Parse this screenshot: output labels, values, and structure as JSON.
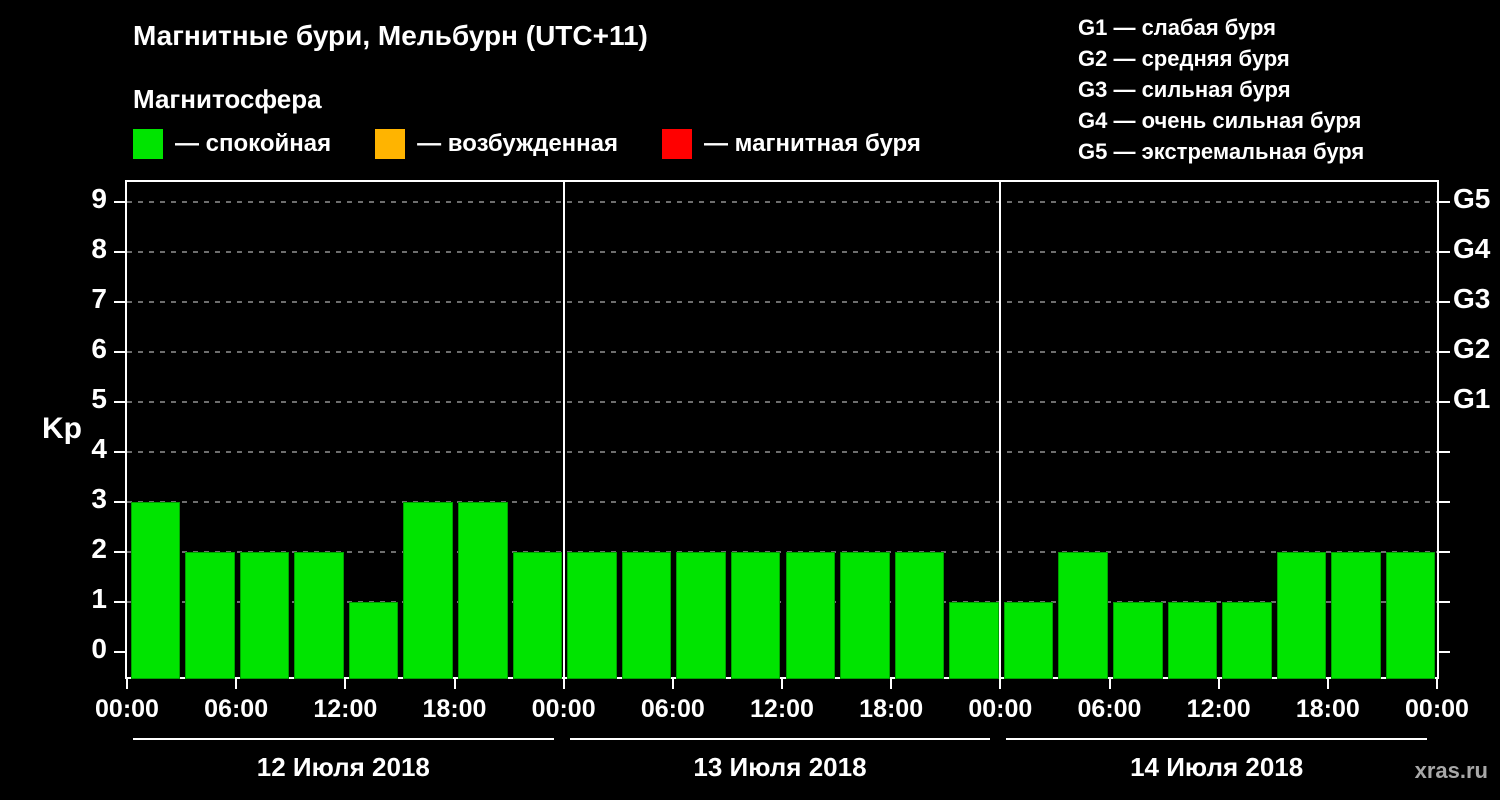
{
  "header": {
    "title": "Магнитные бури, Мельбурн (UTC+11)",
    "subtitle": "Магнитосфера"
  },
  "magnetosphere_legend": [
    {
      "name": "quiet",
      "label": "— спокойная",
      "color": "#00e400"
    },
    {
      "name": "excited",
      "label": "— возбужденная",
      "color": "#ffb400"
    },
    {
      "name": "storm",
      "label": "— магнитная буря",
      "color": "#ff0000"
    }
  ],
  "storm_scale_legend": [
    "G1 — слабая буря",
    "G2 — средняя буря",
    "G3 — сильная буря",
    "G4 — очень сильная буря",
    "G5 — экстремальная буря"
  ],
  "watermark": "xras.ru",
  "chart_data": {
    "type": "bar",
    "title": "Магнитные бури, Мельбурн (UTC+11)",
    "ylabel": "Kp",
    "ylim": [
      0,
      9.4
    ],
    "yticks": [
      0,
      1,
      2,
      3,
      4,
      5,
      6,
      7,
      8,
      9
    ],
    "right_axis_labels": [
      {
        "value": 5,
        "label": "G1"
      },
      {
        "value": 6,
        "label": "G2"
      },
      {
        "value": 7,
        "label": "G3"
      },
      {
        "value": 8,
        "label": "G4"
      },
      {
        "value": 9,
        "label": "G5"
      }
    ],
    "x_tick_labels": [
      "00:00",
      "06:00",
      "12:00",
      "18:00",
      "00:00",
      "06:00",
      "12:00",
      "18:00",
      "00:00",
      "06:00",
      "12:00",
      "18:00",
      "00:00"
    ],
    "bar_interval_hours": 3,
    "bar_color": "#00e400",
    "grid": "dashed horizontal lines at integer Kp values",
    "legend_position": "top",
    "days": [
      {
        "date": "12 Июля 2018",
        "values": [
          3,
          2,
          2,
          2,
          1,
          3,
          3,
          2
        ]
      },
      {
        "date": "13 Июля 2018",
        "values": [
          2,
          2,
          2,
          2,
          2,
          2,
          2,
          1
        ]
      },
      {
        "date": "14 Июля 2018",
        "values": [
          1,
          2,
          1,
          1,
          1,
          2,
          2,
          2
        ]
      }
    ]
  }
}
